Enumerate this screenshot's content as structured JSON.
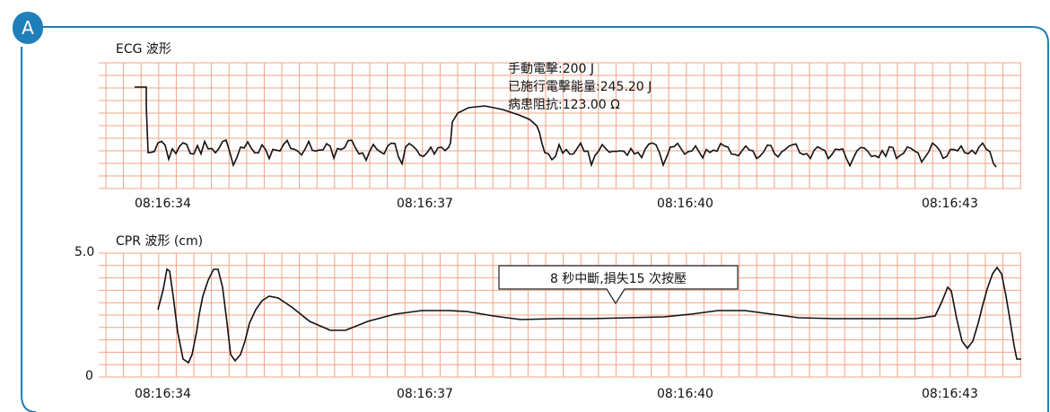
{
  "panel": {
    "badge": "A",
    "border_color": "#1f7fb8"
  },
  "chart_data": [
    {
      "type": "line",
      "title": "ECG 波形",
      "grid": true,
      "grid_color": "#f2a488",
      "line_color": "#111111",
      "x": [
        "08:16:34",
        "08:16:37",
        "08:16:40",
        "08:16:43"
      ],
      "annotations": [
        "手動電擊:200 J",
        "已施行電擊能量:245.20 J",
        "病患阻抗:123.00 Ω"
      ]
    },
    {
      "type": "line",
      "title": "CPR 波形 (cm)",
      "grid": true,
      "grid_color": "#f2a488",
      "line_color": "#111111",
      "x": [
        "08:16:34",
        "08:16:37",
        "08:16:40",
        "08:16:43"
      ],
      "ylim": [
        0,
        5.0
      ],
      "yticks": [
        "5.0",
        "0"
      ],
      "callout": "8 秒中斷,損失15 次按壓"
    }
  ]
}
